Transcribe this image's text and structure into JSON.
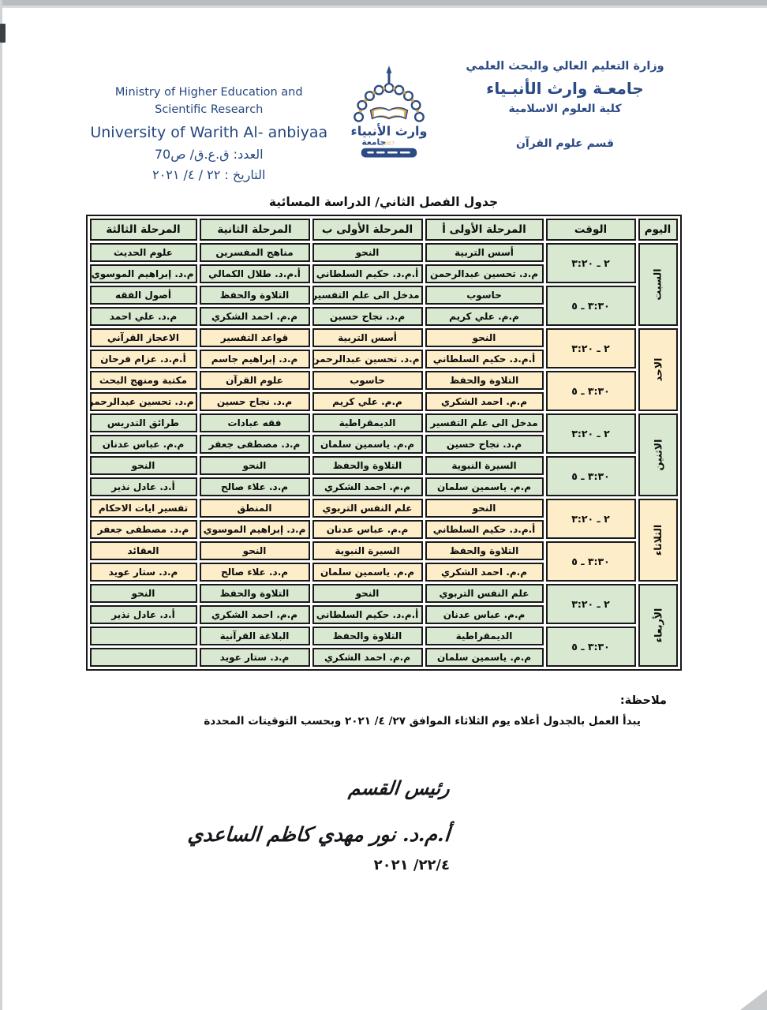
{
  "page": {
    "header": {
      "ministry_en_line1": "Ministry of Higher Education and",
      "ministry_en_line2": "Scientific Research",
      "university_en": "University of Warith Al- anbiyaa",
      "number_line": "العدد: ق.ع.ق/ ص70",
      "date_line": "التاريخ : ٢٢ / ٤/ ٢٠٢١",
      "ministry_ar": "وزارة التعليم العالي والبحث العلمي",
      "university_ar": "جامعـة وارث الأنبـياء",
      "college_ar": "كلية العلوم الاسلامية",
      "department_ar": "قسم علوم القرآن",
      "logo_name": "وارث الأنبياء",
      "logo_sub": "جامعة",
      "logo_year": "2017"
    },
    "title": "جدول الفصل الثاني/ الدراسة المسائية",
    "table": {
      "columns": [
        "اليوم",
        "الوقت",
        "المرحلة الأولى أ",
        "المرحلة الأولى ب",
        "المرحلة الثانية",
        "المرحلة الثالثة"
      ],
      "days": [
        {
          "name": "السبت",
          "tone": "green",
          "slots": [
            {
              "time": "٢ ـ ٣:٢٠",
              "cells": [
                {
                  "subject": "أسس التربية",
                  "teacher": "م.د. تحسين عبدالرحمن"
                },
                {
                  "subject": "النحو",
                  "teacher": "أ.م.د. حكيم السلطاني"
                },
                {
                  "subject": "مناهج المفسرين",
                  "teacher": "أ.م.د. طلال الكمالي"
                },
                {
                  "subject": "علوم الحديث",
                  "teacher": "م.د. إبراهيم الموسوي"
                }
              ]
            },
            {
              "time": "٣:٣٠ ـ ٥",
              "cells": [
                {
                  "subject": "حاسوب",
                  "teacher": "م.م. علي كريم"
                },
                {
                  "subject": "مدخل الى علم التفسير",
                  "teacher": "م.د. نجاح حسين"
                },
                {
                  "subject": "التلاوة والحفظ",
                  "teacher": "م.م. احمد الشكري"
                },
                {
                  "subject": "أصول الفقه",
                  "teacher": "م.د. علي احمد"
                }
              ]
            }
          ]
        },
        {
          "name": "الاحد",
          "tone": "cream",
          "slots": [
            {
              "time": "٢ ـ ٣:٢٠",
              "cells": [
                {
                  "subject": "النحو",
                  "teacher": "أ.م.د. حكيم السلطاني"
                },
                {
                  "subject": "أسس التربية",
                  "teacher": "م.د. تحسين عبدالرحمن"
                },
                {
                  "subject": "قواعد التفسير",
                  "teacher": "م.د. إبراهيم جاسم"
                },
                {
                  "subject": "الاعجاز القرآني",
                  "teacher": "أ.م.د. عزام فرحان"
                }
              ]
            },
            {
              "time": "٣:٣٠ ـ ٥",
              "cells": [
                {
                  "subject": "التلاوة والحفظ",
                  "teacher": "م.م. احمد الشكري"
                },
                {
                  "subject": "حاسوب",
                  "teacher": "م.م. علي كريم"
                },
                {
                  "subject": "علوم القرآن",
                  "teacher": "م.د. نجاح حسين"
                },
                {
                  "subject": "مكتبة ومنهج البحث",
                  "teacher": "م.د. تحسين عبدالرحمن"
                }
              ]
            }
          ]
        },
        {
          "name": "الاثنين",
          "tone": "green",
          "slots": [
            {
              "time": "٢ ـ ٣:٢٠",
              "cells": [
                {
                  "subject": "مدخل الى علم التفسير",
                  "teacher": "م.د. نجاح حسين"
                },
                {
                  "subject": "الديمقراطية",
                  "teacher": "م.م. ياسمين سلمان"
                },
                {
                  "subject": "فقه عبادات",
                  "teacher": "م.د. مصطفى جعفر"
                },
                {
                  "subject": "طرائق التدريس",
                  "teacher": "م.م. عباس عدنان"
                }
              ]
            },
            {
              "time": "٣:٣٠ ـ ٥",
              "cells": [
                {
                  "subject": "السيرة النبوية",
                  "teacher": "م.م. ياسمين سلمان"
                },
                {
                  "subject": "التلاوة والحفظ",
                  "teacher": "م.م. احمد الشكري"
                },
                {
                  "subject": "النحو",
                  "teacher": "م.د. علاء صالح"
                },
                {
                  "subject": "النحو",
                  "teacher": "أ.د. عادل نذير"
                }
              ]
            }
          ]
        },
        {
          "name": "الثلاثاء",
          "tone": "cream",
          "slots": [
            {
              "time": "٢ ـ ٣:٢٠",
              "cells": [
                {
                  "subject": "النحو",
                  "teacher": "أ.م.د. حكيم السلطاني"
                },
                {
                  "subject": "علم النفس التربوي",
                  "teacher": "م.م. عباس عدنان"
                },
                {
                  "subject": "المنطق",
                  "teacher": "م.د. إبراهيم الموسوي"
                },
                {
                  "subject": "تفسير ايات الاحكام",
                  "teacher": "م.د. مصطفى جعفر"
                }
              ]
            },
            {
              "time": "٣:٣٠ ـ ٥",
              "cells": [
                {
                  "subject": "التلاوة والحفظ",
                  "teacher": "م.م. احمد الشكري"
                },
                {
                  "subject": "السيرة النبوية",
                  "teacher": "م.م. ياسمين سلمان"
                },
                {
                  "subject": "النحو",
                  "teacher": "م.د. علاء صالح"
                },
                {
                  "subject": "العقائد",
                  "teacher": "م.د. ستار عويد"
                }
              ]
            }
          ]
        },
        {
          "name": "الأربعاء",
          "tone": "green",
          "slots": [
            {
              "time": "٢ ـ ٣:٢٠",
              "cells": [
                {
                  "subject": "علم النفس التربوي",
                  "teacher": "م.م. عباس عدنان"
                },
                {
                  "subject": "النحو",
                  "teacher": "أ.م.د. حكيم السلطاني"
                },
                {
                  "subject": "التلاوة والحفظ",
                  "teacher": "م.م. احمد الشكري"
                },
                {
                  "subject": "النحو",
                  "teacher": "أ.د. عادل نذير"
                }
              ]
            },
            {
              "time": "٣:٣٠ ـ ٥",
              "cells": [
                {
                  "subject": "الديمقراطية",
                  "teacher": "م.م. ياسمين سلمان"
                },
                {
                  "subject": "التلاوة والحفظ",
                  "teacher": "م.م. احمد الشكري"
                },
                {
                  "subject": "البلاغة القرآنية",
                  "teacher": "م.د. ستار عويد"
                },
                {
                  "subject": "",
                  "teacher": ""
                }
              ]
            }
          ]
        }
      ]
    },
    "note": {
      "label": "ملاحظة:",
      "text": "يبدأ العمل بالجدول أعلاه يوم الثلاثاء الموافق ٢٧/ ٤/ ٢٠٢١ وبحسب التوقيتات المحددة"
    },
    "signature": {
      "title": "رئيس القسم",
      "name": "أ.م.د. نور مهدي كاظم الساعدي",
      "date": "٢٢/٤/ ٢٠٢١"
    },
    "colors": {
      "green": "#d9e8d0",
      "cream": "#fdeec9",
      "border": "#191919",
      "navy": "#24477f",
      "gold": "#d2a53e"
    }
  }
}
